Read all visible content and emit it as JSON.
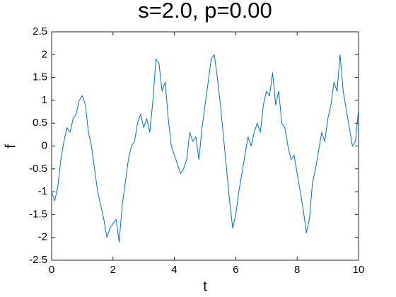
{
  "chart_data": {
    "type": "line",
    "title": "s=2.0, p=0.00",
    "xlabel": "t",
    "ylabel": "f",
    "x": [
      0,
      0.1,
      0.2,
      0.3,
      0.4,
      0.5,
      0.6,
      0.7,
      0.8,
      0.9,
      1,
      1.1,
      1.2,
      1.3,
      1.4,
      1.5,
      1.6,
      1.7,
      1.8,
      1.9,
      2,
      2.1,
      2.2,
      2.3,
      2.4,
      2.5,
      2.6,
      2.7,
      2.8,
      2.9,
      3,
      3.1,
      3.2,
      3.3,
      3.4,
      3.5,
      3.6,
      3.7,
      3.8,
      3.9,
      4,
      4.1,
      4.2,
      4.3,
      4.4,
      4.5,
      4.6,
      4.7,
      4.8,
      4.9,
      5,
      5.1,
      5.2,
      5.3,
      5.4,
      5.5,
      5.6,
      5.7,
      5.8,
      5.9,
      6,
      6.1,
      6.2,
      6.3,
      6.4,
      6.5,
      6.6,
      6.7,
      6.8,
      6.9,
      7,
      7.1,
      7.2,
      7.3,
      7.4,
      7.5,
      7.6,
      7.7,
      7.8,
      7.9,
      8,
      8.1,
      8.2,
      8.3,
      8.4,
      8.5,
      8.6,
      8.7,
      8.8,
      8.9,
      9,
      9.1,
      9.2,
      9.3,
      9.4,
      9.5,
      9.6,
      9.7,
      9.8,
      9.9,
      10
    ],
    "series": [
      {
        "name": "f",
        "color": "#0072bd",
        "values": [
          -1.0,
          -1.2,
          -0.9,
          -0.3,
          0.1,
          0.4,
          0.3,
          0.6,
          0.7,
          1.0,
          1.1,
          0.9,
          0.3,
          0.0,
          -0.5,
          -1.0,
          -1.3,
          -1.6,
          -2.0,
          -1.8,
          -1.7,
          -1.6,
          -2.1,
          -1.3,
          -0.8,
          -0.3,
          0.0,
          0.1,
          0.5,
          0.7,
          0.4,
          0.6,
          0.3,
          1.0,
          1.9,
          1.8,
          1.2,
          1.4,
          0.6,
          0.0,
          -0.2,
          -0.4,
          -0.6,
          -0.5,
          -0.3,
          0.3,
          0.1,
          0.2,
          -0.3,
          0.4,
          0.9,
          1.4,
          1.9,
          2.0,
          1.5,
          0.9,
          0.2,
          -0.5,
          -1.2,
          -1.8,
          -1.5,
          -1.0,
          -0.6,
          -0.2,
          0.2,
          0.0,
          0.3,
          0.5,
          0.3,
          0.9,
          1.2,
          1.1,
          1.6,
          0.9,
          1.2,
          0.5,
          0.4,
          0.0,
          -0.3,
          -0.2,
          -0.6,
          -1.0,
          -1.4,
          -1.9,
          -1.6,
          -0.8,
          -0.5,
          -0.1,
          0.3,
          0.1,
          0.6,
          0.9,
          1.4,
          1.2,
          2.0,
          1.2,
          0.8,
          0.4,
          0.0,
          0.1,
          0.8
        ]
      }
    ],
    "xlim": [
      0,
      10
    ],
    "xticks": [
      0,
      2,
      4,
      6,
      8,
      10
    ],
    "ylim": [
      -2.5,
      2.5
    ],
    "yticks": [
      -2.5,
      -2,
      -1.5,
      -1,
      -0.5,
      0,
      0.5,
      1,
      1.5,
      2,
      2.5
    ],
    "grid": false
  }
}
